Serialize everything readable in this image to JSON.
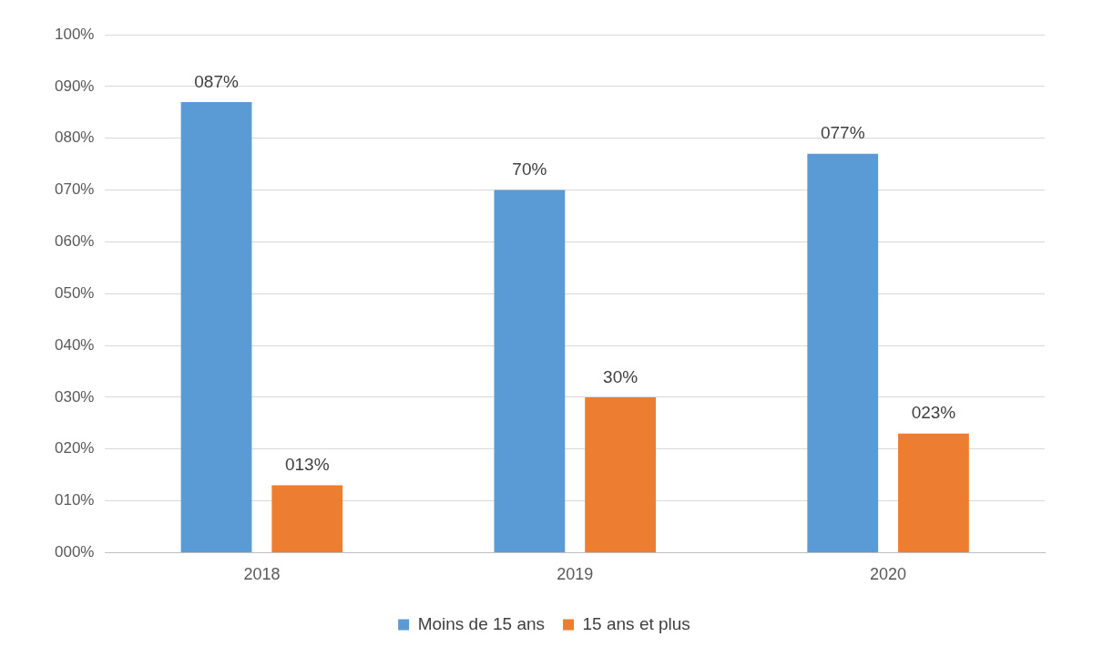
{
  "chart_data": {
    "type": "bar",
    "categories": [
      "2018",
      "2019",
      "2020"
    ],
    "series": [
      {
        "name": "Moins de 15 ans",
        "color": "#5b9bd5",
        "values": [
          87,
          70,
          77
        ],
        "value_labels": [
          "087%",
          "70%",
          "077%"
        ]
      },
      {
        "name": "15 ans et plus",
        "color": "#ed7d31",
        "values": [
          13,
          30,
          23
        ],
        "value_labels": [
          "013%",
          "30%",
          "023%"
        ]
      }
    ],
    "ylim": [
      0,
      100
    ],
    "yticks": [
      {
        "value": 0,
        "label": "000%"
      },
      {
        "value": 10,
        "label": "010%"
      },
      {
        "value": 20,
        "label": "020%"
      },
      {
        "value": 30,
        "label": "030%"
      },
      {
        "value": 40,
        "label": "040%"
      },
      {
        "value": 50,
        "label": "050%"
      },
      {
        "value": 60,
        "label": "060%"
      },
      {
        "value": 70,
        "label": "070%"
      },
      {
        "value": 80,
        "label": "080%"
      },
      {
        "value": 90,
        "label": "090%"
      },
      {
        "value": 100,
        "label": "100%"
      }
    ],
    "grid": "y",
    "legend": "bottom"
  }
}
